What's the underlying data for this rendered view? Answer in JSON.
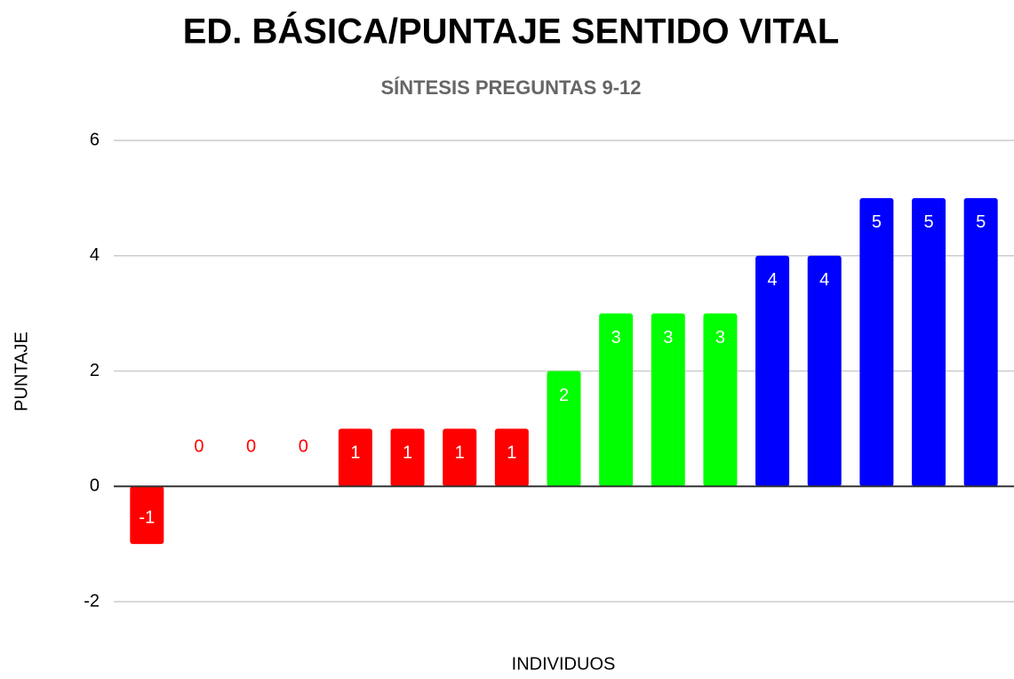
{
  "chart_data": {
    "type": "bar",
    "title": "ED. BÁSICA/PUNTAJE SENTIDO VITAL",
    "subtitle": "SÍNTESIS PREGUNTAS 9-12",
    "x_label": "INDIVIDUOS",
    "y_label": "PUNTAJE",
    "categories": [
      null,
      null,
      null,
      null,
      null,
      null,
      null,
      null,
      null,
      null,
      null,
      null,
      null,
      null,
      null,
      null,
      null
    ],
    "values": [
      -1,
      0,
      0,
      0,
      1,
      1,
      1,
      1,
      2,
      3,
      3,
      3,
      4,
      4,
      5,
      5,
      5
    ],
    "colors": [
      "#ff0000",
      "#ff0000",
      "#ff0000",
      "#ff0000",
      "#ff0000",
      "#ff0000",
      "#ff0000",
      "#ff0000",
      "#00ff00",
      "#00ff00",
      "#00ff00",
      "#00ff00",
      "#0000ff",
      "#0000ff",
      "#0000ff",
      "#0000ff",
      "#0000ff"
    ],
    "ylim": [
      -2,
      6
    ],
    "yticks": [
      -2,
      0,
      2,
      4,
      6
    ],
    "grid": true
  }
}
